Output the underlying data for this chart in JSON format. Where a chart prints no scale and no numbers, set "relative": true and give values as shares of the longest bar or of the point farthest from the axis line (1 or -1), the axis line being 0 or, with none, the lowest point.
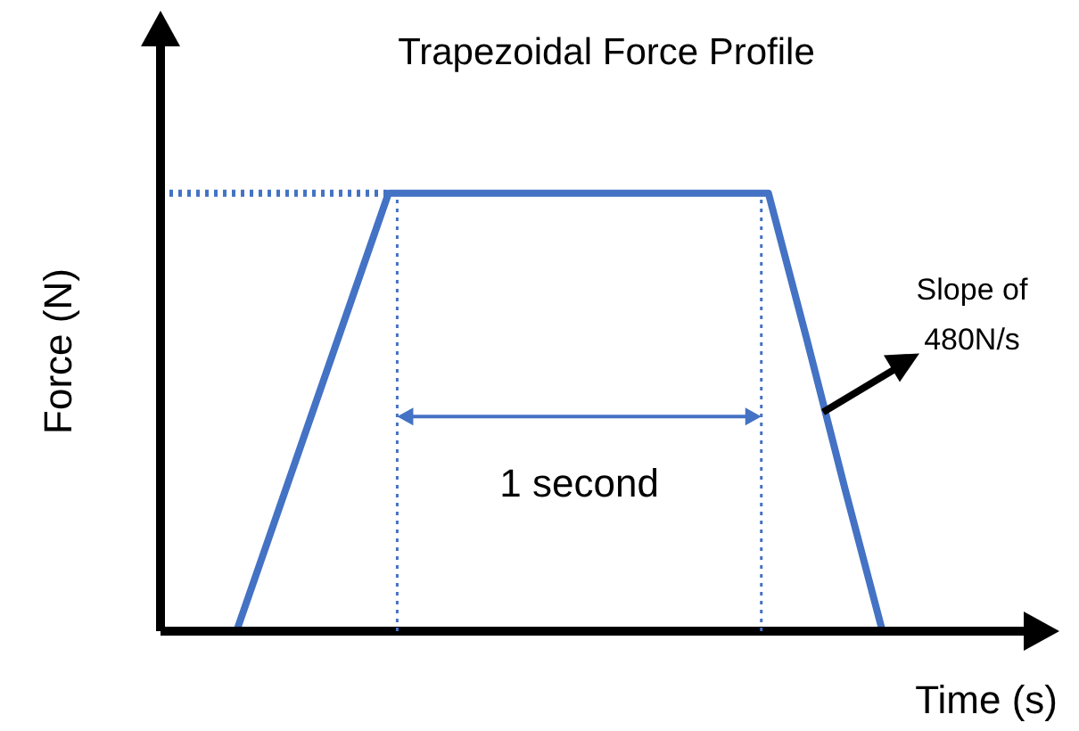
{
  "chart_data": {
    "type": "line",
    "title": "Trapezoidal Force Profile",
    "xlabel": "Time (s)",
    "ylabel": "Force (N)",
    "categories": [
      null,
      null,
      null,
      null,
      null,
      null,
      null,
      null,
      null,
      null,
      null,
      null,
      null,
      null,
      null,
      null,
      null,
      null,
      null,
      null,
      null,
      null,
      null,
      null
    ],
    "series": [
      {
        "color": "#4472c4",
        "values": [
          null,
          null,
          0,
          0.25,
          0.5,
          0.75,
          1,
          1,
          1,
          1,
          1,
          1,
          1,
          1,
          1,
          1,
          1,
          0.67,
          0.33,
          0,
          null,
          null,
          null,
          null
        ]
      }
    ],
    "relative": true,
    "grid": false,
    "legend": false,
    "marker": "none",
    "line_style": "solid",
    "ref_lines": [
      {
        "axis": "y",
        "value": 1,
        "color": "#4472c4",
        "line_style": "dotted"
      }
    ],
    "annotations": [
      "1 second",
      "Slope of 480N/s"
    ]
  }
}
